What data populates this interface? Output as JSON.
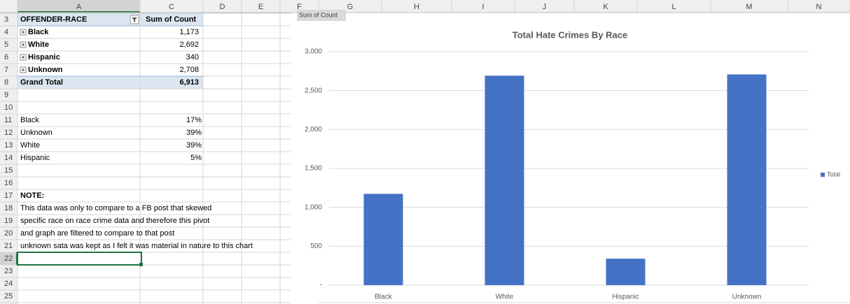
{
  "sheet": {
    "columns": [
      "A",
      "C",
      "D",
      "E",
      "F",
      "G",
      "H",
      "I",
      "J",
      "K",
      "L",
      "M",
      "N"
    ],
    "row_numbers": [
      3,
      4,
      5,
      6,
      7,
      8,
      9,
      10,
      11,
      12,
      13,
      14,
      15,
      16,
      17,
      18,
      19,
      20,
      21,
      22,
      23,
      24,
      25
    ],
    "pivot_table": {
      "header": [
        "OFFENDER-RACE",
        "Sum of Count"
      ],
      "rows": [
        [
          "Black",
          "1,173"
        ],
        [
          "White",
          "2,692"
        ],
        [
          "Hispanic",
          "340"
        ],
        [
          "Unknown",
          "2,708"
        ]
      ],
      "total": [
        "Grand Total",
        "6,913"
      ]
    },
    "summary": [
      [
        "Black",
        "17%"
      ],
      [
        "Unknown",
        "39%"
      ],
      [
        "White",
        "39%"
      ],
      [
        "Hispanic",
        "5%"
      ]
    ],
    "note": {
      "title": "NOTE:",
      "lines": [
        "This data was only to compare to a FB post that skewed",
        "specific race on race crime data and therefore this pivot",
        "and graph are filtered to compare to that post",
        "unknown sata was kept as I felt it was material in nature to this chart"
      ]
    }
  },
  "field_button": "Sum of Count",
  "chart_data": {
    "type": "bar",
    "title": "Total Hate Crimes By Race",
    "categories": [
      "Black",
      "White",
      "Hispanic",
      "Unknown"
    ],
    "series": [
      {
        "name": "Total",
        "color": "#4472c4",
        "values": [
          1173,
          2692,
          340,
          2708
        ]
      }
    ],
    "ylim": [
      0,
      3000
    ],
    "yticks": [
      {
        "value": 0,
        "label": "-"
      },
      {
        "value": 500,
        "label": "500"
      },
      {
        "value": 1000,
        "label": "1,000"
      },
      {
        "value": 1500,
        "label": "1,500"
      },
      {
        "value": 2000,
        "label": "2,000"
      },
      {
        "value": 2500,
        "label": "2,500"
      },
      {
        "value": 3000,
        "label": "3,000"
      }
    ],
    "grid": true,
    "legend": "right"
  }
}
